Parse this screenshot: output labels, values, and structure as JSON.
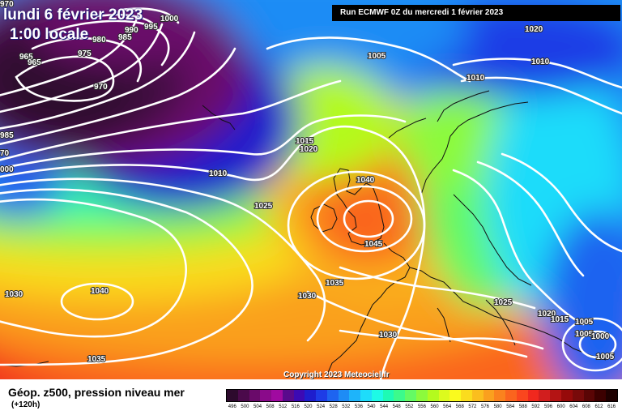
{
  "header": {
    "date_title": "lundi 6 février 2023",
    "time_title": "1:00 locale",
    "run_label": "Run ECMWF 0Z du mercredi 1 février 2023"
  },
  "copyright": "Copyright 2023 Meteociel.fr",
  "legend": {
    "title": "Géop. z500, pression niveau mer",
    "subtitle": "(+120h)",
    "colors": [
      "#2d0a2d",
      "#4b0a4b",
      "#6a0a6a",
      "#8a0a8a",
      "#a00aa0",
      "#5a0a8c",
      "#3c0ab4",
      "#1e1ecd",
      "#1e3ce6",
      "#1e64f0",
      "#1e8cf5",
      "#1eb4fa",
      "#1edcfa",
      "#1efae6",
      "#1efab4",
      "#3cfa8c",
      "#64fa64",
      "#8cfa3c",
      "#b4fa1e",
      "#dcfa1e",
      "#fafa1e",
      "#fadc1e",
      "#fabe1e",
      "#faa01e",
      "#fa821e",
      "#fa641e",
      "#fa461e",
      "#f0281e",
      "#d21e1e",
      "#b41414",
      "#960a0a",
      "#780a0a",
      "#5a0505",
      "#3c0000",
      "#1e0000"
    ],
    "ticks": [
      "496",
      "500",
      "504",
      "508",
      "512",
      "516",
      "520",
      "524",
      "528",
      "532",
      "536",
      "540",
      "544",
      "548",
      "552",
      "556",
      "560",
      "564",
      "568",
      "572",
      "576",
      "580",
      "584",
      "588",
      "592",
      "596",
      "600",
      "604",
      "608",
      "612",
      "616"
    ]
  },
  "isobar_labels": [
    {
      "text": "1000"
    },
    {
      "text": "990"
    },
    {
      "text": "995"
    },
    {
      "text": "985"
    },
    {
      "text": "980"
    },
    {
      "text": "975"
    },
    {
      "text": "965"
    },
    {
      "text": "970"
    },
    {
      "text": "1005"
    },
    {
      "text": "1010"
    },
    {
      "text": "1020"
    },
    {
      "text": "1010"
    },
    {
      "text": "1010"
    },
    {
      "text": "1015"
    },
    {
      "text": "1020"
    },
    {
      "text": "1040"
    },
    {
      "text": "1025"
    },
    {
      "text": "1045"
    },
    {
      "text": "1035"
    },
    {
      "text": "1030"
    },
    {
      "text": "1040"
    },
    {
      "text": "1030"
    },
    {
      "text": "1030"
    },
    {
      "text": "1025"
    },
    {
      "text": "1035"
    },
    {
      "text": "1020"
    },
    {
      "text": "1015"
    },
    {
      "text": "1005"
    },
    {
      "text": "1005"
    },
    {
      "text": "1000"
    },
    {
      "text": "1005"
    },
    {
      "text": "970"
    },
    {
      "text": "985"
    },
    {
      "text": "000"
    },
    {
      "text": "70"
    },
    {
      "text": "965"
    }
  ]
}
